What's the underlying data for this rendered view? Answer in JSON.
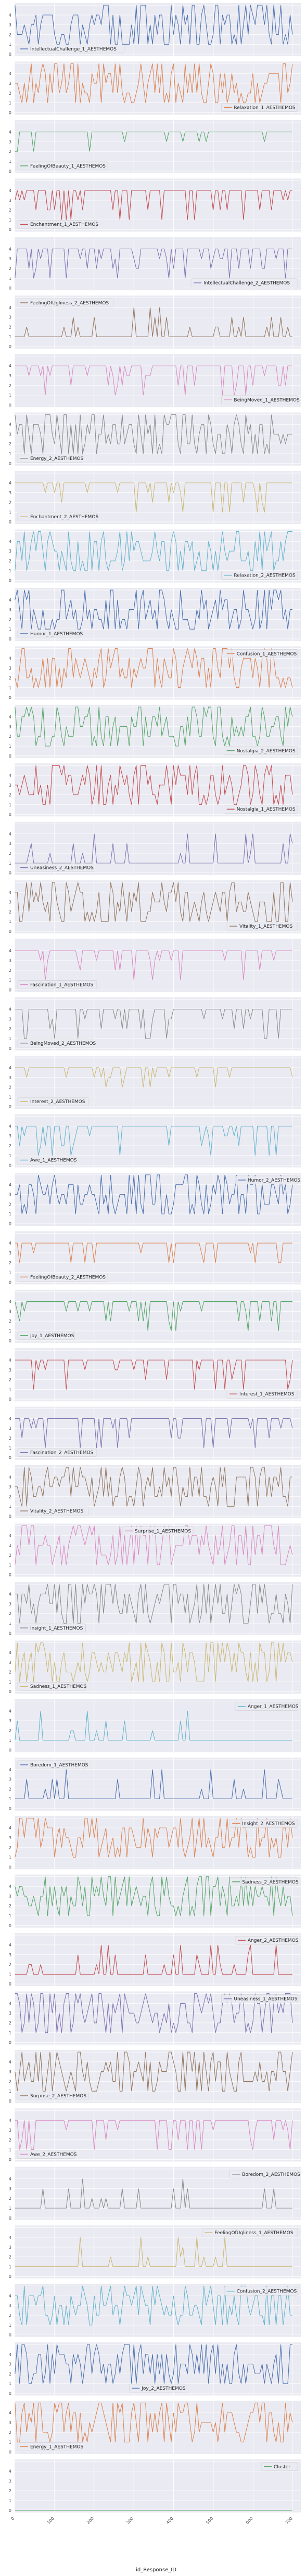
{
  "chart_data": {
    "type": "line",
    "xlabel": "id_Response_ID",
    "xticks": [
      "0",
      "100",
      "200",
      "300",
      "400",
      "500",
      "600",
      "700"
    ],
    "xlim": [
      0,
      720
    ],
    "ylim": [
      0,
      5
    ],
    "yticks": [
      "0",
      "1",
      "2",
      "3",
      "4",
      "5"
    ],
    "grid": true,
    "panels": [
      {
        "name": "IntellectualChallenge_1_AESTHEMOS",
        "color": "#4c72b0",
        "legend": "bottom-left",
        "pattern": "erratic",
        "base": 3
      },
      {
        "name": "Relaxation_1_AESTHEMOS",
        "color": "#dd8452",
        "legend": "bottom-right",
        "pattern": "erratic",
        "base": 3
      },
      {
        "name": "FeelingOfBeauty_1_AESTHEMOS",
        "color": "#55a868",
        "legend": "bottom-left",
        "pattern": "flat",
        "base": 4
      },
      {
        "name": "Enchantment_1_AESTHEMOS",
        "color": "#c44e52",
        "legend": "bottom-left",
        "pattern": "spiky",
        "base": 4
      },
      {
        "name": "IntellectualChallenge_2_AESTHEMOS",
        "color": "#8172b3",
        "legend": "bottom-right",
        "pattern": "spiky",
        "base": 4
      },
      {
        "name": "FeelingOfUgliness_2_AESTHEMOS",
        "color": "#937860",
        "legend": "top-left",
        "pattern": "low",
        "base": 1
      },
      {
        "name": "BeingMoved_1_AESTHEMOS",
        "color": "#da8bc3",
        "legend": "bottom-right",
        "pattern": "spiky",
        "base": 4
      },
      {
        "name": "Energy_2_AESTHEMOS",
        "color": "#8c8c8c",
        "legend": "bottom-left",
        "pattern": "erratic",
        "base": 3
      },
      {
        "name": "Enchantment_2_AESTHEMOS",
        "color": "#ccb974",
        "legend": "bottom-left",
        "pattern": "spiky",
        "base": 4
      },
      {
        "name": "Relaxation_2_AESTHEMOS",
        "color": "#64b5cd",
        "legend": "bottom-right",
        "pattern": "erratic",
        "base": 3
      },
      {
        "name": "Humor_1_AESTHEMOS",
        "color": "#4c72b0",
        "legend": "bottom-left",
        "pattern": "erratic",
        "base": 3
      },
      {
        "name": "Confusion_1_AESTHEMOS",
        "color": "#dd8452",
        "legend": "top-right",
        "pattern": "erratic",
        "base": 3
      },
      {
        "name": "Nostalgia_2_AESTHEMOS",
        "color": "#55a868",
        "legend": "bottom-right",
        "pattern": "erratic",
        "base": 3
      },
      {
        "name": "Nostalgia_1_AESTHEMOS",
        "color": "#c44e52",
        "legend": "bottom-right",
        "pattern": "erratic",
        "base": 3
      },
      {
        "name": "Uneasiness_2_AESTHEMOS",
        "color": "#8172b3",
        "legend": "bottom-left",
        "pattern": "low",
        "base": 1
      },
      {
        "name": "Vitality_1_AESTHEMOS",
        "color": "#937860",
        "legend": "bottom-right",
        "pattern": "erratic",
        "base": 3
      },
      {
        "name": "Fascination_1_AESTHEMOS",
        "color": "#da8bc3",
        "legend": "bottom-left",
        "pattern": "spiky",
        "base": 4
      },
      {
        "name": "BeingMoved_2_AESTHEMOS",
        "color": "#8c8c8c",
        "legend": "bottom-left",
        "pattern": "spiky",
        "base": 4
      },
      {
        "name": "Interest_2_AESTHEMOS",
        "color": "#ccb974",
        "legend": "bottom-left",
        "pattern": "flat",
        "base": 4
      },
      {
        "name": "Awe_1_AESTHEMOS",
        "color": "#64b5cd",
        "legend": "bottom-left",
        "pattern": "spiky",
        "base": 4
      },
      {
        "name": "Humor_2_AESTHEMOS",
        "color": "#4c72b0",
        "legend": "top-right",
        "pattern": "erratic",
        "base": 3
      },
      {
        "name": "FeelingOfBeauty_2_AESTHEMOS",
        "color": "#dd8452",
        "legend": "bottom-left",
        "pattern": "flat",
        "base": 4
      },
      {
        "name": "Joy_1_AESTHEMOS",
        "color": "#55a868",
        "legend": "bottom-left",
        "pattern": "spiky",
        "base": 4
      },
      {
        "name": "Interest_1_AESTHEMOS",
        "color": "#c44e52",
        "legend": "bottom-right",
        "pattern": "spiky",
        "base": 4
      },
      {
        "name": "Fascination_2_AESTHEMOS",
        "color": "#8172b3",
        "legend": "bottom-left",
        "pattern": "spiky",
        "base": 4
      },
      {
        "name": "Vitality_2_AESTHEMOS",
        "color": "#937860",
        "legend": "bottom-left",
        "pattern": "erratic",
        "base": 3
      },
      {
        "name": "Surprise_1_AESTHEMOS",
        "color": "#da8bc3",
        "legend": "top-center",
        "pattern": "erratic",
        "base": 3
      },
      {
        "name": "Insight_1_AESTHEMOS",
        "color": "#8c8c8c",
        "legend": "bottom-left",
        "pattern": "erratic",
        "base": 3
      },
      {
        "name": "Sadness_1_AESTHEMOS",
        "color": "#ccb974",
        "legend": "bottom-left",
        "pattern": "erratic",
        "base": 2
      },
      {
        "name": "Anger_1_AESTHEMOS",
        "color": "#64b5cd",
        "legend": "top-right",
        "pattern": "low",
        "base": 1
      },
      {
        "name": "Boredom_1_AESTHEMOS",
        "color": "#4c72b0",
        "legend": "top-left",
        "pattern": "low",
        "base": 1
      },
      {
        "name": "Insight_2_AESTHEMOS",
        "color": "#dd8452",
        "legend": "top-right",
        "pattern": "erratic",
        "base": 3
      },
      {
        "name": "Sadness_2_AESTHEMOS",
        "color": "#55a868",
        "legend": "top-right",
        "pattern": "erratic",
        "base": 2
      },
      {
        "name": "Anger_2_AESTHEMOS",
        "color": "#c44e52",
        "legend": "top-right",
        "pattern": "low",
        "base": 1
      },
      {
        "name": "Uneasiness_1_AESTHEMOS",
        "color": "#8172b3",
        "legend": "top-right",
        "pattern": "erratic",
        "base": 2
      },
      {
        "name": "Surprise_2_AESTHEMOS",
        "color": "#937860",
        "legend": "bottom-left",
        "pattern": "erratic",
        "base": 3
      },
      {
        "name": "Awe_2_AESTHEMOS",
        "color": "#da8bc3",
        "legend": "bottom-left",
        "pattern": "spiky",
        "base": 4
      },
      {
        "name": "Boredom_2_AESTHEMOS",
        "color": "#8c8c8c",
        "legend": "top-right",
        "pattern": "low",
        "base": 1
      },
      {
        "name": "FeelingOfUgliness_1_AESTHEMOS",
        "color": "#ccb974",
        "legend": "top-right",
        "pattern": "low",
        "base": 1
      },
      {
        "name": "Confusion_2_AESTHEMOS",
        "color": "#64b5cd",
        "legend": "top-right",
        "pattern": "erratic",
        "base": 2
      },
      {
        "name": "Joy_2_AESTHEMOS",
        "color": "#4c72b0",
        "legend": "bottom-center",
        "pattern": "erratic",
        "base": 3
      },
      {
        "name": "Energy_1_AESTHEMOS",
        "color": "#dd8452",
        "legend": "bottom-left",
        "pattern": "erratic",
        "base": 3
      },
      {
        "name": "Cluster",
        "color": "#55a868",
        "legend": "top-right",
        "pattern": "zero",
        "base": 0
      }
    ]
  }
}
